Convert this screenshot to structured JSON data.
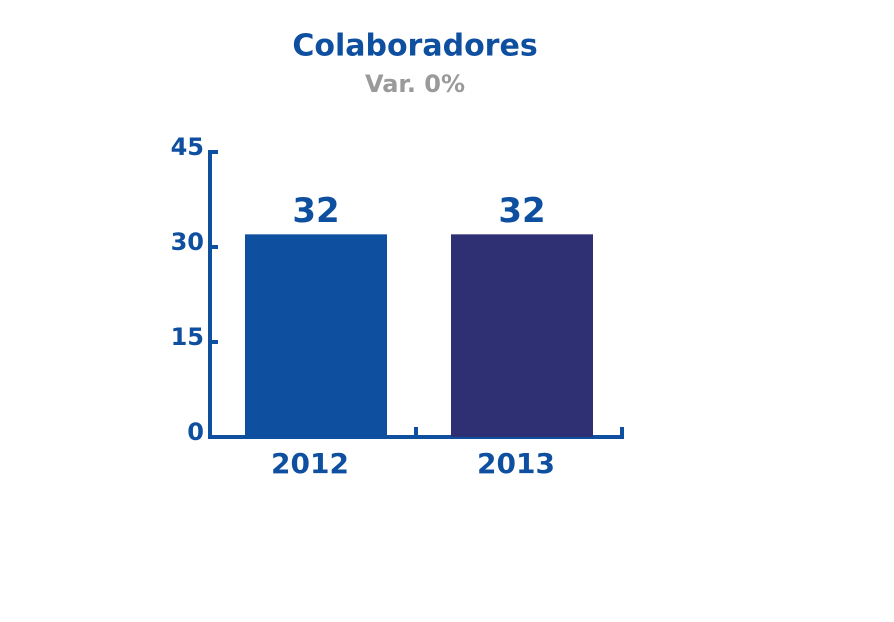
{
  "chart_data": {
    "type": "bar",
    "title": "Colaboradores",
    "subtitle": "Var. 0%",
    "categories": [
      "2012",
      "2013"
    ],
    "values": [
      32,
      32
    ],
    "colors": [
      "#0f4fa0",
      "#2e3073"
    ],
    "ylim": [
      0,
      45
    ],
    "yticks": [
      0,
      15,
      30,
      45
    ],
    "grid": false
  }
}
